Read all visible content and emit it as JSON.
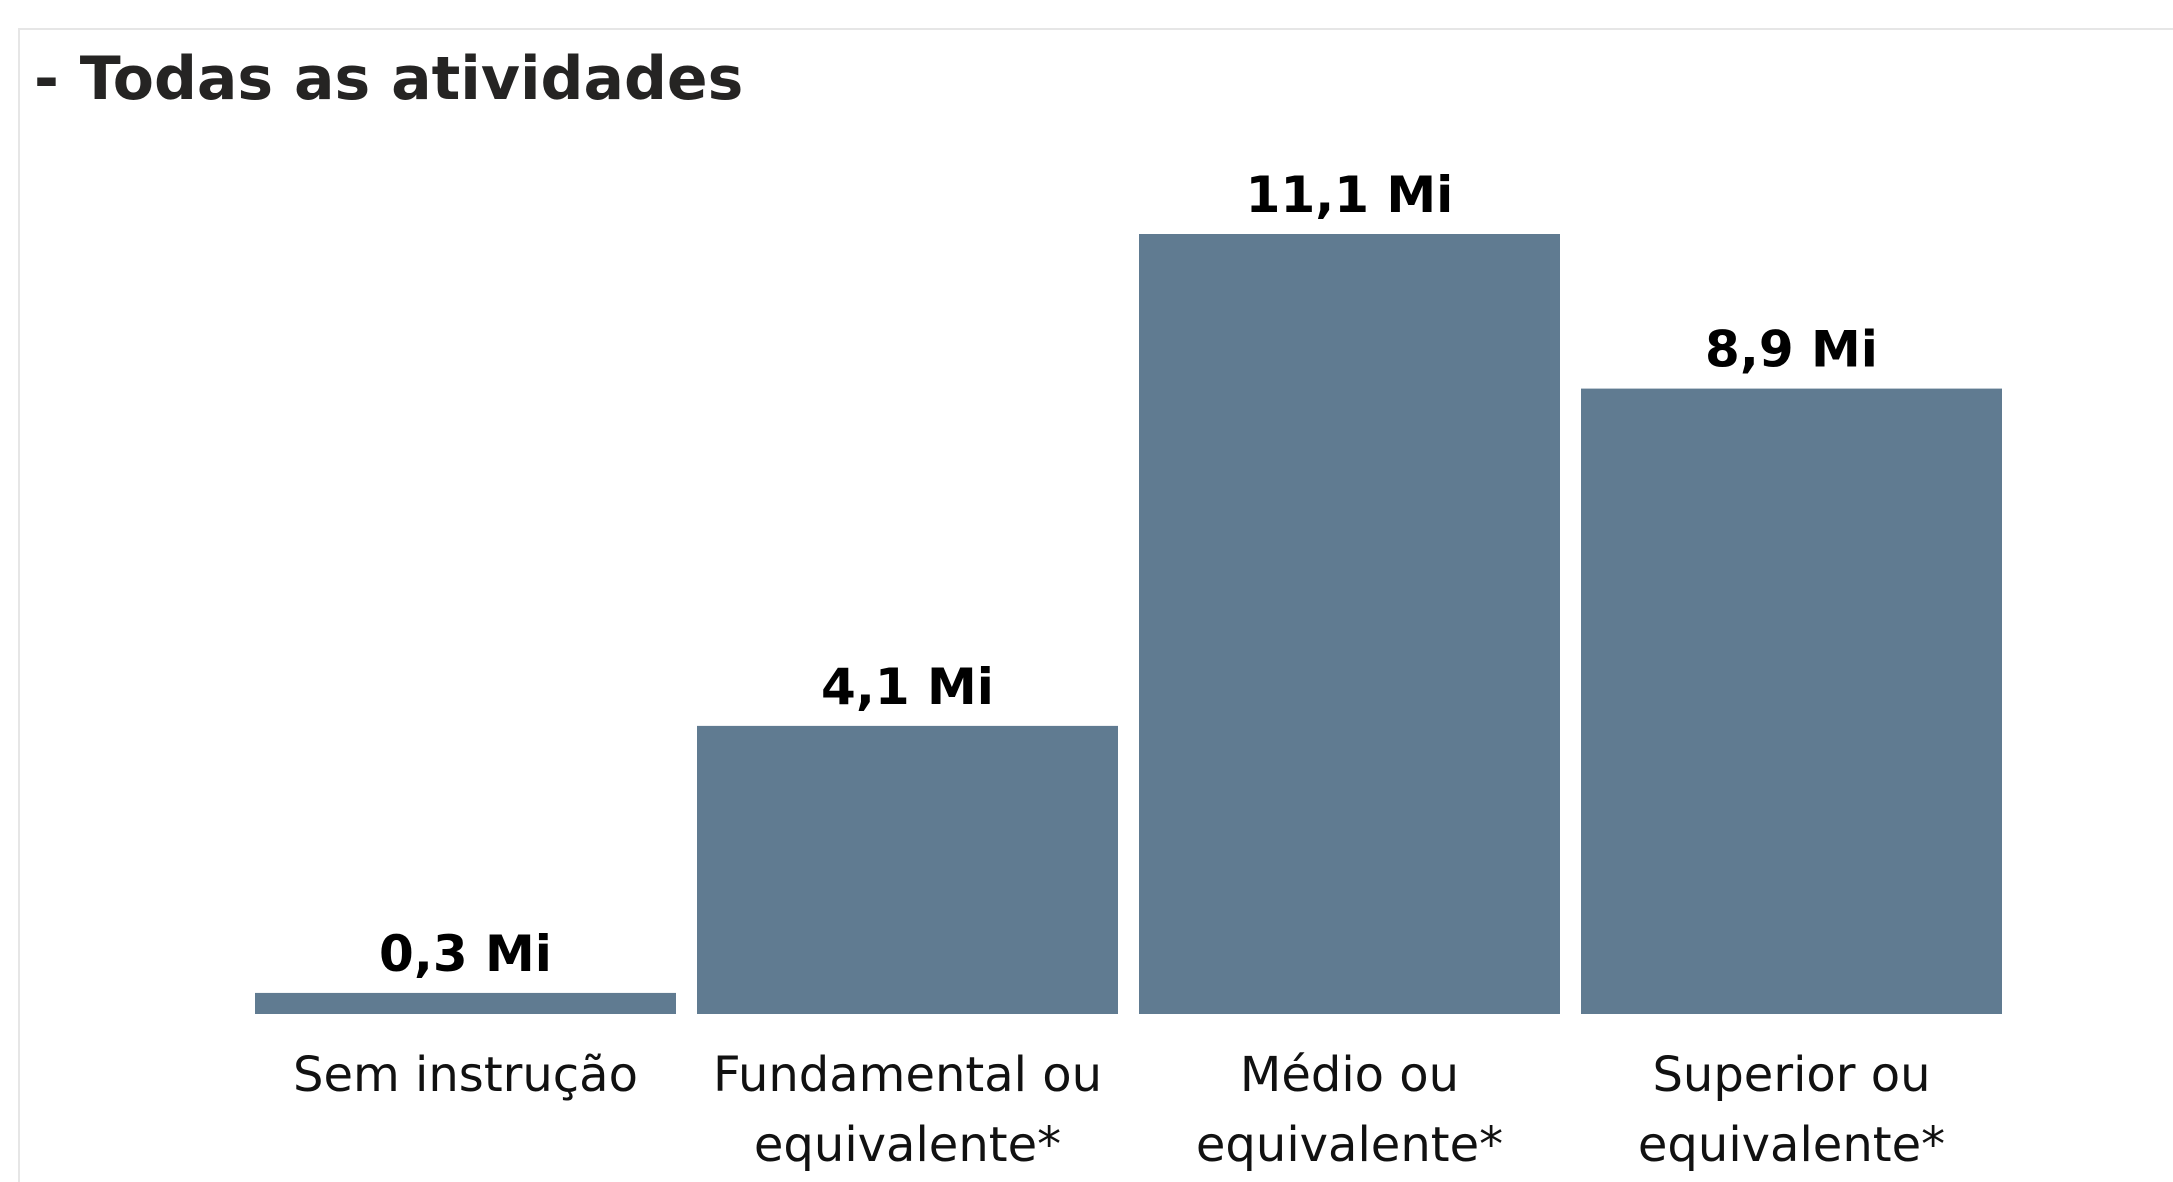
{
  "chart_data": {
    "type": "bar",
    "title": "- Todas as atividades",
    "categories": [
      "Sem instrução",
      "Fundamental ou equivalente*",
      "Médio ou equivalente*",
      "Superior ou equivalente*"
    ],
    "values": [
      0.3,
      4.1,
      11.1,
      8.9
    ],
    "value_labels": [
      "0,3 Mi",
      "4,1 Mi",
      "11,1 Mi",
      "8,9 Mi"
    ],
    "color": "#607b91"
  }
}
